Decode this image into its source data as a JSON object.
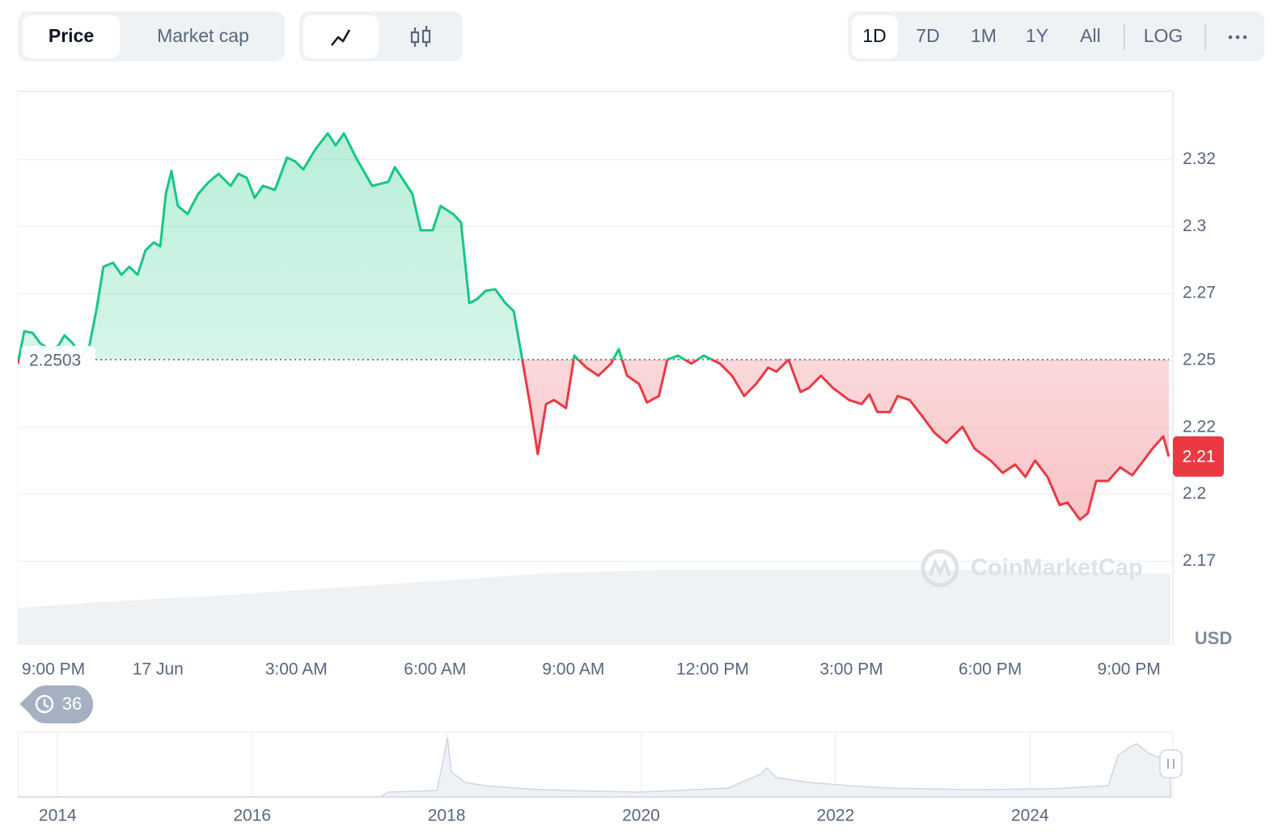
{
  "toolbar": {
    "tabs": [
      "Price",
      "Market cap"
    ],
    "ranges": [
      "1D",
      "7D",
      "1M",
      "1Y",
      "All"
    ],
    "scale_option": "LOG"
  },
  "chart_data": {
    "type": "line",
    "x": [
      -0.77,
      -0.63,
      -0.45,
      -0.28,
      -0.07,
      0.1,
      0.24,
      0.42,
      0.59,
      0.77,
      0.94,
      1.08,
      1.29,
      1.47,
      1.64,
      1.82,
      1.99,
      2.17,
      2.31,
      2.43,
      2.55,
      2.69,
      2.9,
      3.13,
      3.36,
      3.57,
      3.83,
      4.0,
      4.18,
      4.35,
      4.53,
      4.79,
      5.05,
      5.23,
      5.4,
      5.66,
      5.93,
      6.1,
      6.28,
      6.54,
      6.89,
      7.24,
      7.38,
      7.59,
      7.76,
      7.94,
      8.2,
      8.37,
      8.64,
      8.81,
      8.99,
      9.16,
      9.34,
      9.55,
      9.77,
      9.95,
      10.12,
      10.3,
      10.47,
      10.65,
      10.82,
      11.08,
      11.26,
      11.52,
      11.78,
      12.05,
      12.22,
      12.4,
      12.66,
      12.83,
      13.09,
      13.27,
      13.5,
      13.79,
      14.06,
      14.41,
      14.67,
      14.93,
      15.19,
      15.45,
      15.63,
      15.89,
      16.15,
      16.33,
      16.59,
      16.85,
      17.2,
      17.47,
      17.64,
      17.81,
      18.08,
      18.25,
      18.51,
      18.78,
      19.04,
      19.3,
      19.65,
      19.91,
      20.26,
      20.52,
      20.79,
      21.01,
      21.22,
      21.49,
      21.75,
      21.92,
      22.19,
      22.36,
      22.54,
      22.8,
      23.06,
      23.32,
      23.5,
      23.76,
      23.99,
      24.11
    ],
    "values": [
      2.2488,
      2.2609,
      2.2603,
      2.2563,
      2.2542,
      2.2554,
      2.2594,
      2.2563,
      2.2518,
      2.2548,
      2.2699,
      2.285,
      2.2865,
      2.282,
      2.285,
      2.282,
      2.2911,
      2.2941,
      2.2926,
      2.3122,
      2.3207,
      2.3077,
      2.3047,
      2.3122,
      2.3167,
      2.3197,
      2.3152,
      2.3197,
      2.3182,
      2.3107,
      2.3152,
      2.3137,
      2.3258,
      2.3243,
      2.3213,
      2.3288,
      2.3348,
      2.3303,
      2.3348,
      2.3258,
      2.3152,
      2.3167,
      2.3222,
      2.3167,
      2.3122,
      2.2986,
      2.2986,
      2.3077,
      2.3047,
      2.3016,
      2.2714,
      2.2729,
      2.276,
      2.2766,
      2.2714,
      2.2684,
      2.2518,
      2.2337,
      2.215,
      2.2337,
      2.2352,
      2.2322,
      2.2518,
      2.2473,
      2.2443,
      2.2488,
      2.2542,
      2.2443,
      2.2412,
      2.2343,
      2.2367,
      2.2503,
      2.2518,
      2.2488,
      2.2518,
      2.2488,
      2.2443,
      2.2367,
      2.2412,
      2.2473,
      2.2458,
      2.2503,
      2.2382,
      2.2397,
      2.2443,
      2.2397,
      2.2352,
      2.2337,
      2.2373,
      2.2307,
      2.2307,
      2.2367,
      2.2352,
      2.2292,
      2.2231,
      2.2192,
      2.2252,
      2.2171,
      2.2126,
      2.208,
      2.2111,
      2.2065,
      2.2126,
      2.2065,
      2.196,
      2.1969,
      2.1905,
      2.1929,
      2.205,
      2.205,
      2.2101,
      2.2071,
      2.2111,
      2.2171,
      2.2216,
      2.2141
    ],
    "up_color": "#16c784",
    "down_color": "#ea3943",
    "baseline": 2.2503,
    "current_price": {
      "value": 2.2141,
      "label": "2.21"
    },
    "xlim": [
      -0.77,
      24.2
    ],
    "xticks": [
      {
        "value": 0,
        "label": "9:00 PM"
      },
      {
        "value": 2.26,
        "label": "17 Jun"
      },
      {
        "value": 5.25,
        "label": "3:00 AM"
      },
      {
        "value": 8.25,
        "label": "6:00 AM"
      },
      {
        "value": 11.24,
        "label": "9:00 AM"
      },
      {
        "value": 14.25,
        "label": "12:00 PM"
      },
      {
        "value": 17.25,
        "label": "3:00 PM"
      },
      {
        "value": 20.25,
        "label": "6:00 PM"
      },
      {
        "value": 23.25,
        "label": "9:00 PM"
      }
    ],
    "ylim": [
      2.1437,
      2.3505
    ],
    "yticks": [
      {
        "value": 2.325,
        "label": "2.32"
      },
      2.3,
      {
        "value": 2.275,
        "label": "2.27"
      },
      2.25,
      {
        "value": 2.225,
        "label": "2.22"
      },
      2.2,
      {
        "value": 2.175,
        "label": "2.17"
      }
    ],
    "y_unit": "USD",
    "grid": true,
    "watermark": "CoinMarketCap",
    "history_count": 36
  },
  "navigator": {
    "xlim": [
      2013.59,
      2025.47
    ],
    "xticks": [
      2014,
      2016,
      2018,
      2020,
      2022,
      2024
    ]
  }
}
